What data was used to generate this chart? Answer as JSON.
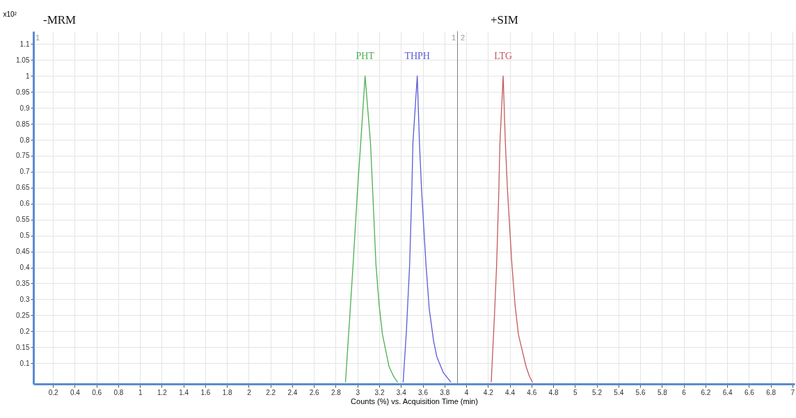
{
  "chart_data": {
    "type": "line",
    "xlabel": "Counts (%) vs. Acquisition Time (min)",
    "ylabel": "x10²",
    "xlim": [
      0.02,
      7.02
    ],
    "ylim": [
      0.035,
      1.14
    ],
    "xticks": [
      0.2,
      0.4,
      0.6,
      0.8,
      1,
      1.2,
      1.4,
      1.6,
      1.8,
      2,
      2.2,
      2.4,
      2.6,
      2.8,
      3,
      3.2,
      3.4,
      3.6,
      3.8,
      4,
      4.2,
      4.4,
      4.6,
      4.8,
      5,
      5.2,
      5.4,
      5.6,
      5.8,
      6,
      6.2,
      6.4,
      6.6,
      6.8,
      7
    ],
    "yticks": [
      0.1,
      0.15,
      0.2,
      0.25,
      0.3,
      0.35,
      0.4,
      0.45,
      0.5,
      0.55,
      0.6,
      0.65,
      0.7,
      0.75,
      0.8,
      0.85,
      0.9,
      0.95,
      1,
      1.05,
      1.1
    ],
    "grid": true,
    "legend": false,
    "series": [
      {
        "name": "PHT",
        "color": "#4caf50",
        "x": [
          2.89,
          2.93,
          2.96,
          3.0,
          3.03,
          3.07,
          3.12,
          3.14,
          3.17,
          3.2,
          3.23,
          3.29,
          3.33,
          3.37
        ],
        "values": [
          0.04,
          0.25,
          0.41,
          0.64,
          0.79,
          1.0,
          0.79,
          0.64,
          0.41,
          0.28,
          0.19,
          0.09,
          0.06,
          0.04
        ]
      },
      {
        "name": "THPH",
        "color": "#5a5ad6",
        "x": [
          3.42,
          3.45,
          3.48,
          3.5,
          3.51,
          3.55,
          3.57,
          3.59,
          3.63,
          3.66,
          3.7,
          3.73,
          3.79,
          3.86
        ],
        "values": [
          0.04,
          0.2,
          0.41,
          0.64,
          0.79,
          1.0,
          0.79,
          0.64,
          0.41,
          0.27,
          0.17,
          0.12,
          0.07,
          0.04
        ]
      },
      {
        "name": "LTG",
        "color": "#c45a5a",
        "x": [
          4.23,
          4.26,
          4.28,
          4.3,
          4.31,
          4.34,
          4.36,
          4.38,
          4.42,
          4.45,
          4.48,
          4.55,
          4.58,
          4.61
        ],
        "values": [
          0.04,
          0.25,
          0.41,
          0.64,
          0.79,
          1.0,
          0.79,
          0.64,
          0.41,
          0.28,
          0.19,
          0.09,
          0.06,
          0.04
        ]
      }
    ],
    "ref_lines": [
      {
        "axis": "x",
        "value": 3.92,
        "color": "#808080"
      }
    ],
    "annotations": [
      "-MRM",
      "+SIM",
      "1",
      "1",
      "2"
    ]
  }
}
